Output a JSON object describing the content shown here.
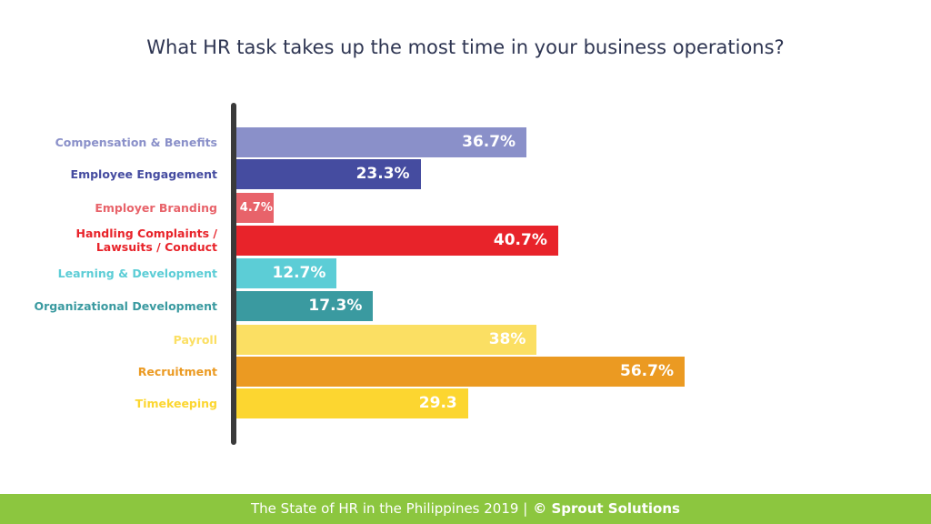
{
  "chart_data": {
    "type": "bar",
    "orientation": "horizontal",
    "title": "What HR task takes up the most time in your business operations?",
    "categories": [
      "Compensation & Benefits",
      "Employee Engagement",
      "Employer Branding",
      "Handling Complaints / Lawsuits / Conduct",
      "Learning & Development",
      "Organizational Development",
      "Payroll",
      "Recruitment",
      "Timekeeping"
    ],
    "values": [
      36.7,
      23.3,
      4.7,
      40.7,
      12.7,
      17.3,
      38,
      56.7,
      29.3
    ],
    "value_labels": [
      "36.7%",
      "23.3%",
      "4.7%",
      "40.7%",
      "12.7%",
      "17.3%",
      "38%",
      "56.7%",
      "29.3"
    ],
    "colors": [
      "#8a90c9",
      "#454ca0",
      "#e8636a",
      "#e8232a",
      "#5ccdd6",
      "#3a9aa0",
      "#fbdf63",
      "#eb9a22",
      "#fcd630"
    ],
    "footer": [
      "The State of HR in the Philippines 2019 |",
      "© Sprout Solutions"
    ]
  }
}
